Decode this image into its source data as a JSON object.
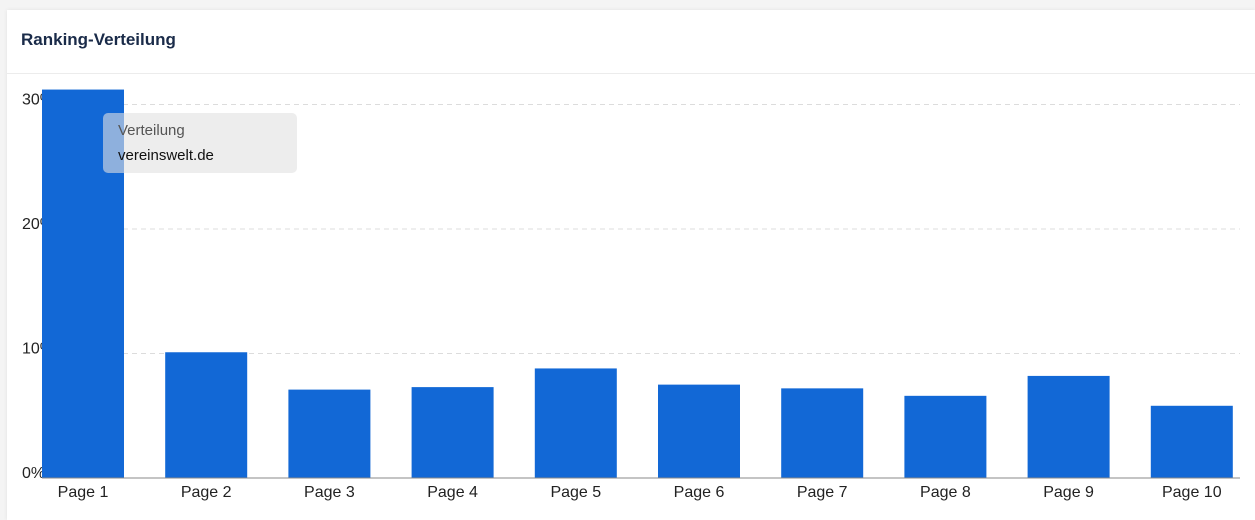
{
  "chart_data": {
    "type": "bar",
    "title": "Ranking-Verteilung",
    "categories": [
      "Page 1",
      "Page 2",
      "Page 3",
      "Page 4",
      "Page 5",
      "Page 6",
      "Page 7",
      "Page 8",
      "Page 9",
      "Page 10"
    ],
    "values": [
      31.2,
      10.1,
      7.1,
      7.3,
      8.8,
      7.5,
      7.2,
      6.6,
      8.2,
      5.8
    ],
    "color": "#1268d6",
    "ylim": [
      0,
      30
    ],
    "yticks": [
      {
        "value": 0,
        "label": "0%"
      },
      {
        "value": 10,
        "label": "10%"
      },
      {
        "value": 20,
        "label": "20%"
      },
      {
        "value": 30,
        "label": "30%"
      }
    ],
    "grid": true,
    "tooltip": {
      "title": "Verteilung",
      "text": "vereinswelt.de"
    }
  }
}
